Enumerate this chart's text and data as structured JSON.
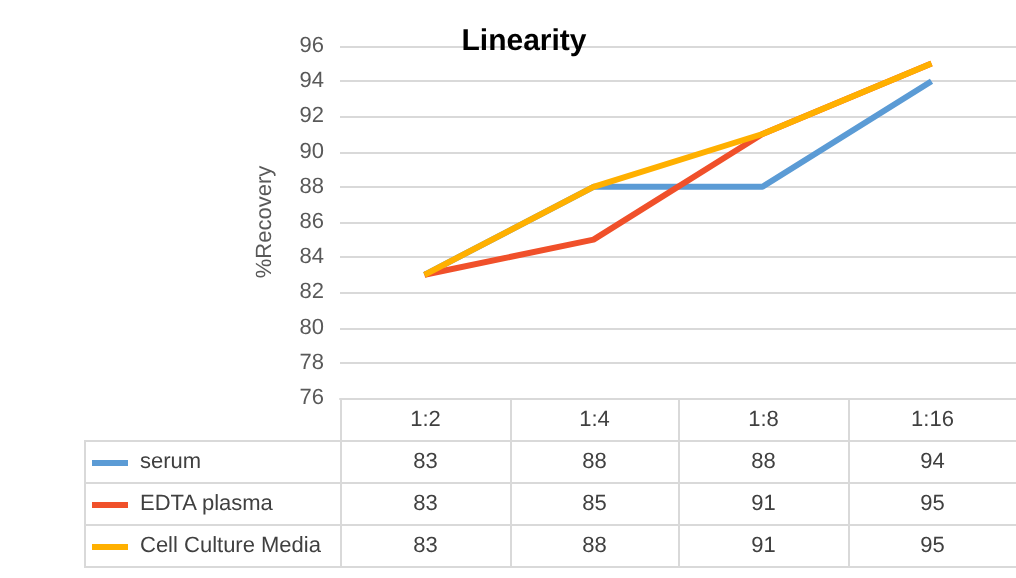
{
  "chart_data": {
    "type": "line",
    "title": "Linearity",
    "ylabel": "%Recovery",
    "categories": [
      "1:2",
      "1:4",
      "1:8",
      "1:16"
    ],
    "series": [
      {
        "name": "serum",
        "color": "#5b9bd5",
        "values": [
          83,
          88,
          88,
          94
        ]
      },
      {
        "name": "EDTA plasma",
        "color": "#f0502a",
        "values": [
          83,
          85,
          91,
          95
        ]
      },
      {
        "name": "Cell Culture Media",
        "color": "#ffb000",
        "values": [
          83,
          88,
          91,
          95
        ]
      }
    ],
    "ylim": [
      76,
      96
    ],
    "yticks": [
      76,
      78,
      80,
      82,
      84,
      86,
      88,
      90,
      92,
      94,
      96
    ],
    "grid": "y",
    "legend": "bottom",
    "data_labels": true,
    "marker": "none",
    "line_style": "solid"
  }
}
